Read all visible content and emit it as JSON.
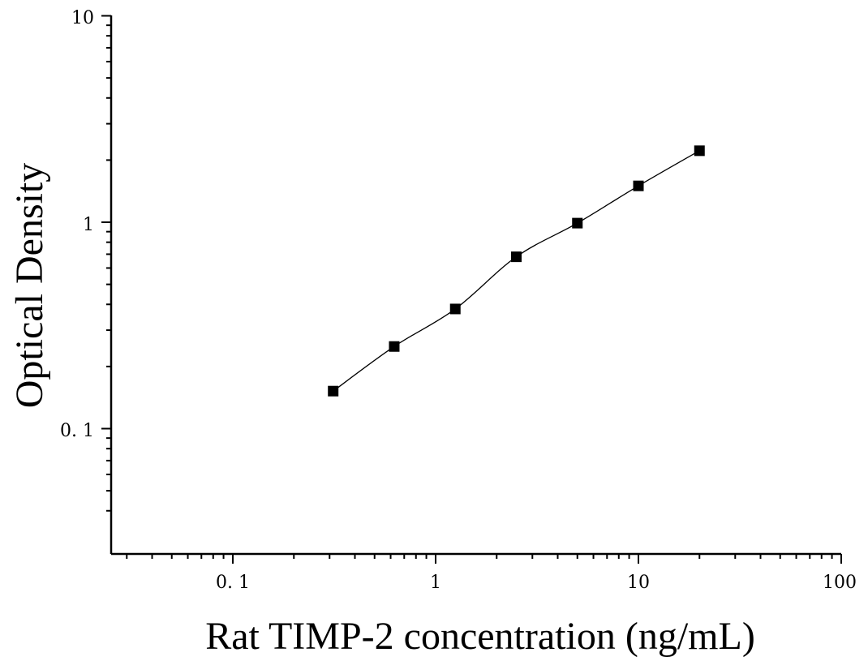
{
  "chart_data": {
    "type": "scatter",
    "xscale": "log",
    "yscale": "log",
    "xlim": [
      0.025,
      100
    ],
    "ylim": [
      0.04,
      10
    ],
    "xlabel": "Rat TIMP-2 concentration (ng/mL)",
    "ylabel": "Optical Density",
    "xticks": [
      0.1,
      1,
      10,
      100
    ],
    "xtick_labels": [
      "0. 1",
      "1",
      "10",
      "100"
    ],
    "yticks": [
      0.1,
      1,
      10
    ],
    "ytick_labels": [
      "0. 1",
      "1",
      "10"
    ],
    "grid": false,
    "series": [
      {
        "marker": "square",
        "color": "#000000",
        "x": [
          0.3125,
          0.625,
          1.25,
          2.5,
          5,
          10,
          20
        ],
        "y": [
          0.152,
          0.25,
          0.38,
          0.68,
          0.99,
          1.5,
          2.22
        ],
        "fit_line": true
      }
    ]
  }
}
